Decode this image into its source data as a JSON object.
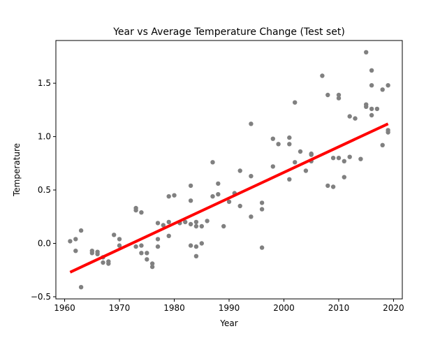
{
  "chart_data": {
    "type": "scatter",
    "title": "Year vs Average Temperature Change (Test set)",
    "xlabel": "Year",
    "ylabel": "Temperature",
    "xlim": [
      1958.4,
      2021.6
    ],
    "ylim": [
      -0.52,
      1.9
    ],
    "xticks": [
      1960,
      1970,
      1980,
      1990,
      2000,
      2010,
      2020
    ],
    "xtick_labels": [
      "1960",
      "1970",
      "1980",
      "1990",
      "2000",
      "2010",
      "2020"
    ],
    "yticks": [
      -0.5,
      0.0,
      0.5,
      1.0,
      1.5
    ],
    "ytick_labels": [
      "−0.5",
      "0.0",
      "0.5",
      "1.0",
      "1.5"
    ],
    "grid": false,
    "legend": "none",
    "colors": {
      "points": "#808080",
      "fit_line": "#ff0000"
    },
    "points": [
      [
        1961,
        0.02
      ],
      [
        1962,
        0.04
      ],
      [
        1962,
        -0.07
      ],
      [
        1963,
        0.12
      ],
      [
        1963,
        -0.41
      ],
      [
        1965,
        -0.07
      ],
      [
        1965,
        -0.09
      ],
      [
        1966,
        -0.08
      ],
      [
        1966,
        -0.1
      ],
      [
        1967,
        -0.13
      ],
      [
        1967,
        -0.18
      ],
      [
        1968,
        -0.17
      ],
      [
        1968,
        -0.19
      ],
      [
        1969,
        0.08
      ],
      [
        1970,
        0.04
      ],
      [
        1970,
        -0.02
      ],
      [
        1973,
        0.33
      ],
      [
        1973,
        0.31
      ],
      [
        1973,
        -0.03
      ],
      [
        1974,
        0.29
      ],
      [
        1974,
        -0.02
      ],
      [
        1974,
        -0.09
      ],
      [
        1975,
        -0.09
      ],
      [
        1975,
        -0.15
      ],
      [
        1976,
        -0.19
      ],
      [
        1976,
        -0.22
      ],
      [
        1977,
        0.19
      ],
      [
        1977,
        0.04
      ],
      [
        1977,
        -0.03
      ],
      [
        1978,
        0.17
      ],
      [
        1979,
        0.2
      ],
      [
        1979,
        0.44
      ],
      [
        1979,
        0.07
      ],
      [
        1980,
        0.45
      ],
      [
        1981,
        0.19
      ],
      [
        1982,
        0.2
      ],
      [
        1983,
        0.54
      ],
      [
        1983,
        0.4
      ],
      [
        1983,
        0.18
      ],
      [
        1983,
        -0.02
      ],
      [
        1984,
        0.2
      ],
      [
        1984,
        0.16
      ],
      [
        1984,
        -0.03
      ],
      [
        1984,
        -0.12
      ],
      [
        1985,
        0.16
      ],
      [
        1985,
        0.0
      ],
      [
        1986,
        0.21
      ],
      [
        1987,
        0.76
      ],
      [
        1987,
        0.44
      ],
      [
        1988,
        0.56
      ],
      [
        1988,
        0.46
      ],
      [
        1989,
        0.16
      ],
      [
        1990,
        0.39
      ],
      [
        1991,
        0.47
      ],
      [
        1992,
        0.68
      ],
      [
        1992,
        0.35
      ],
      [
        1994,
        1.12
      ],
      [
        1994,
        0.63
      ],
      [
        1994,
        0.25
      ],
      [
        1996,
        0.38
      ],
      [
        1996,
        0.32
      ],
      [
        1996,
        -0.04
      ],
      [
        1998,
        0.98
      ],
      [
        1998,
        0.72
      ],
      [
        1999,
        0.93
      ],
      [
        2001,
        0.99
      ],
      [
        2001,
        0.93
      ],
      [
        2001,
        0.6
      ],
      [
        2002,
        1.32
      ],
      [
        2002,
        0.76
      ],
      [
        2003,
        0.86
      ],
      [
        2004,
        0.68
      ],
      [
        2005,
        0.84
      ],
      [
        2005,
        0.83
      ],
      [
        2005,
        0.77
      ],
      [
        2007,
        1.57
      ],
      [
        2008,
        1.39
      ],
      [
        2008,
        0.54
      ],
      [
        2009,
        0.8
      ],
      [
        2009,
        0.53
      ],
      [
        2010,
        1.39
      ],
      [
        2010,
        1.36
      ],
      [
        2010,
        0.8
      ],
      [
        2011,
        0.77
      ],
      [
        2011,
        0.62
      ],
      [
        2012,
        1.19
      ],
      [
        2012,
        0.81
      ],
      [
        2013,
        1.17
      ],
      [
        2014,
        0.79
      ],
      [
        2015,
        1.79
      ],
      [
        2015,
        1.3
      ],
      [
        2015,
        1.28
      ],
      [
        2016,
        1.62
      ],
      [
        2016,
        1.48
      ],
      [
        2016,
        1.26
      ],
      [
        2016,
        1.2
      ],
      [
        2017,
        1.26
      ],
      [
        2018,
        1.44
      ],
      [
        2018,
        0.92
      ],
      [
        2019,
        1.48
      ],
      [
        2019,
        1.06
      ],
      [
        2019,
        1.04
      ]
    ],
    "fit_line": {
      "x": [
        1961,
        2019
      ],
      "y": [
        -0.27,
        1.12
      ]
    }
  }
}
